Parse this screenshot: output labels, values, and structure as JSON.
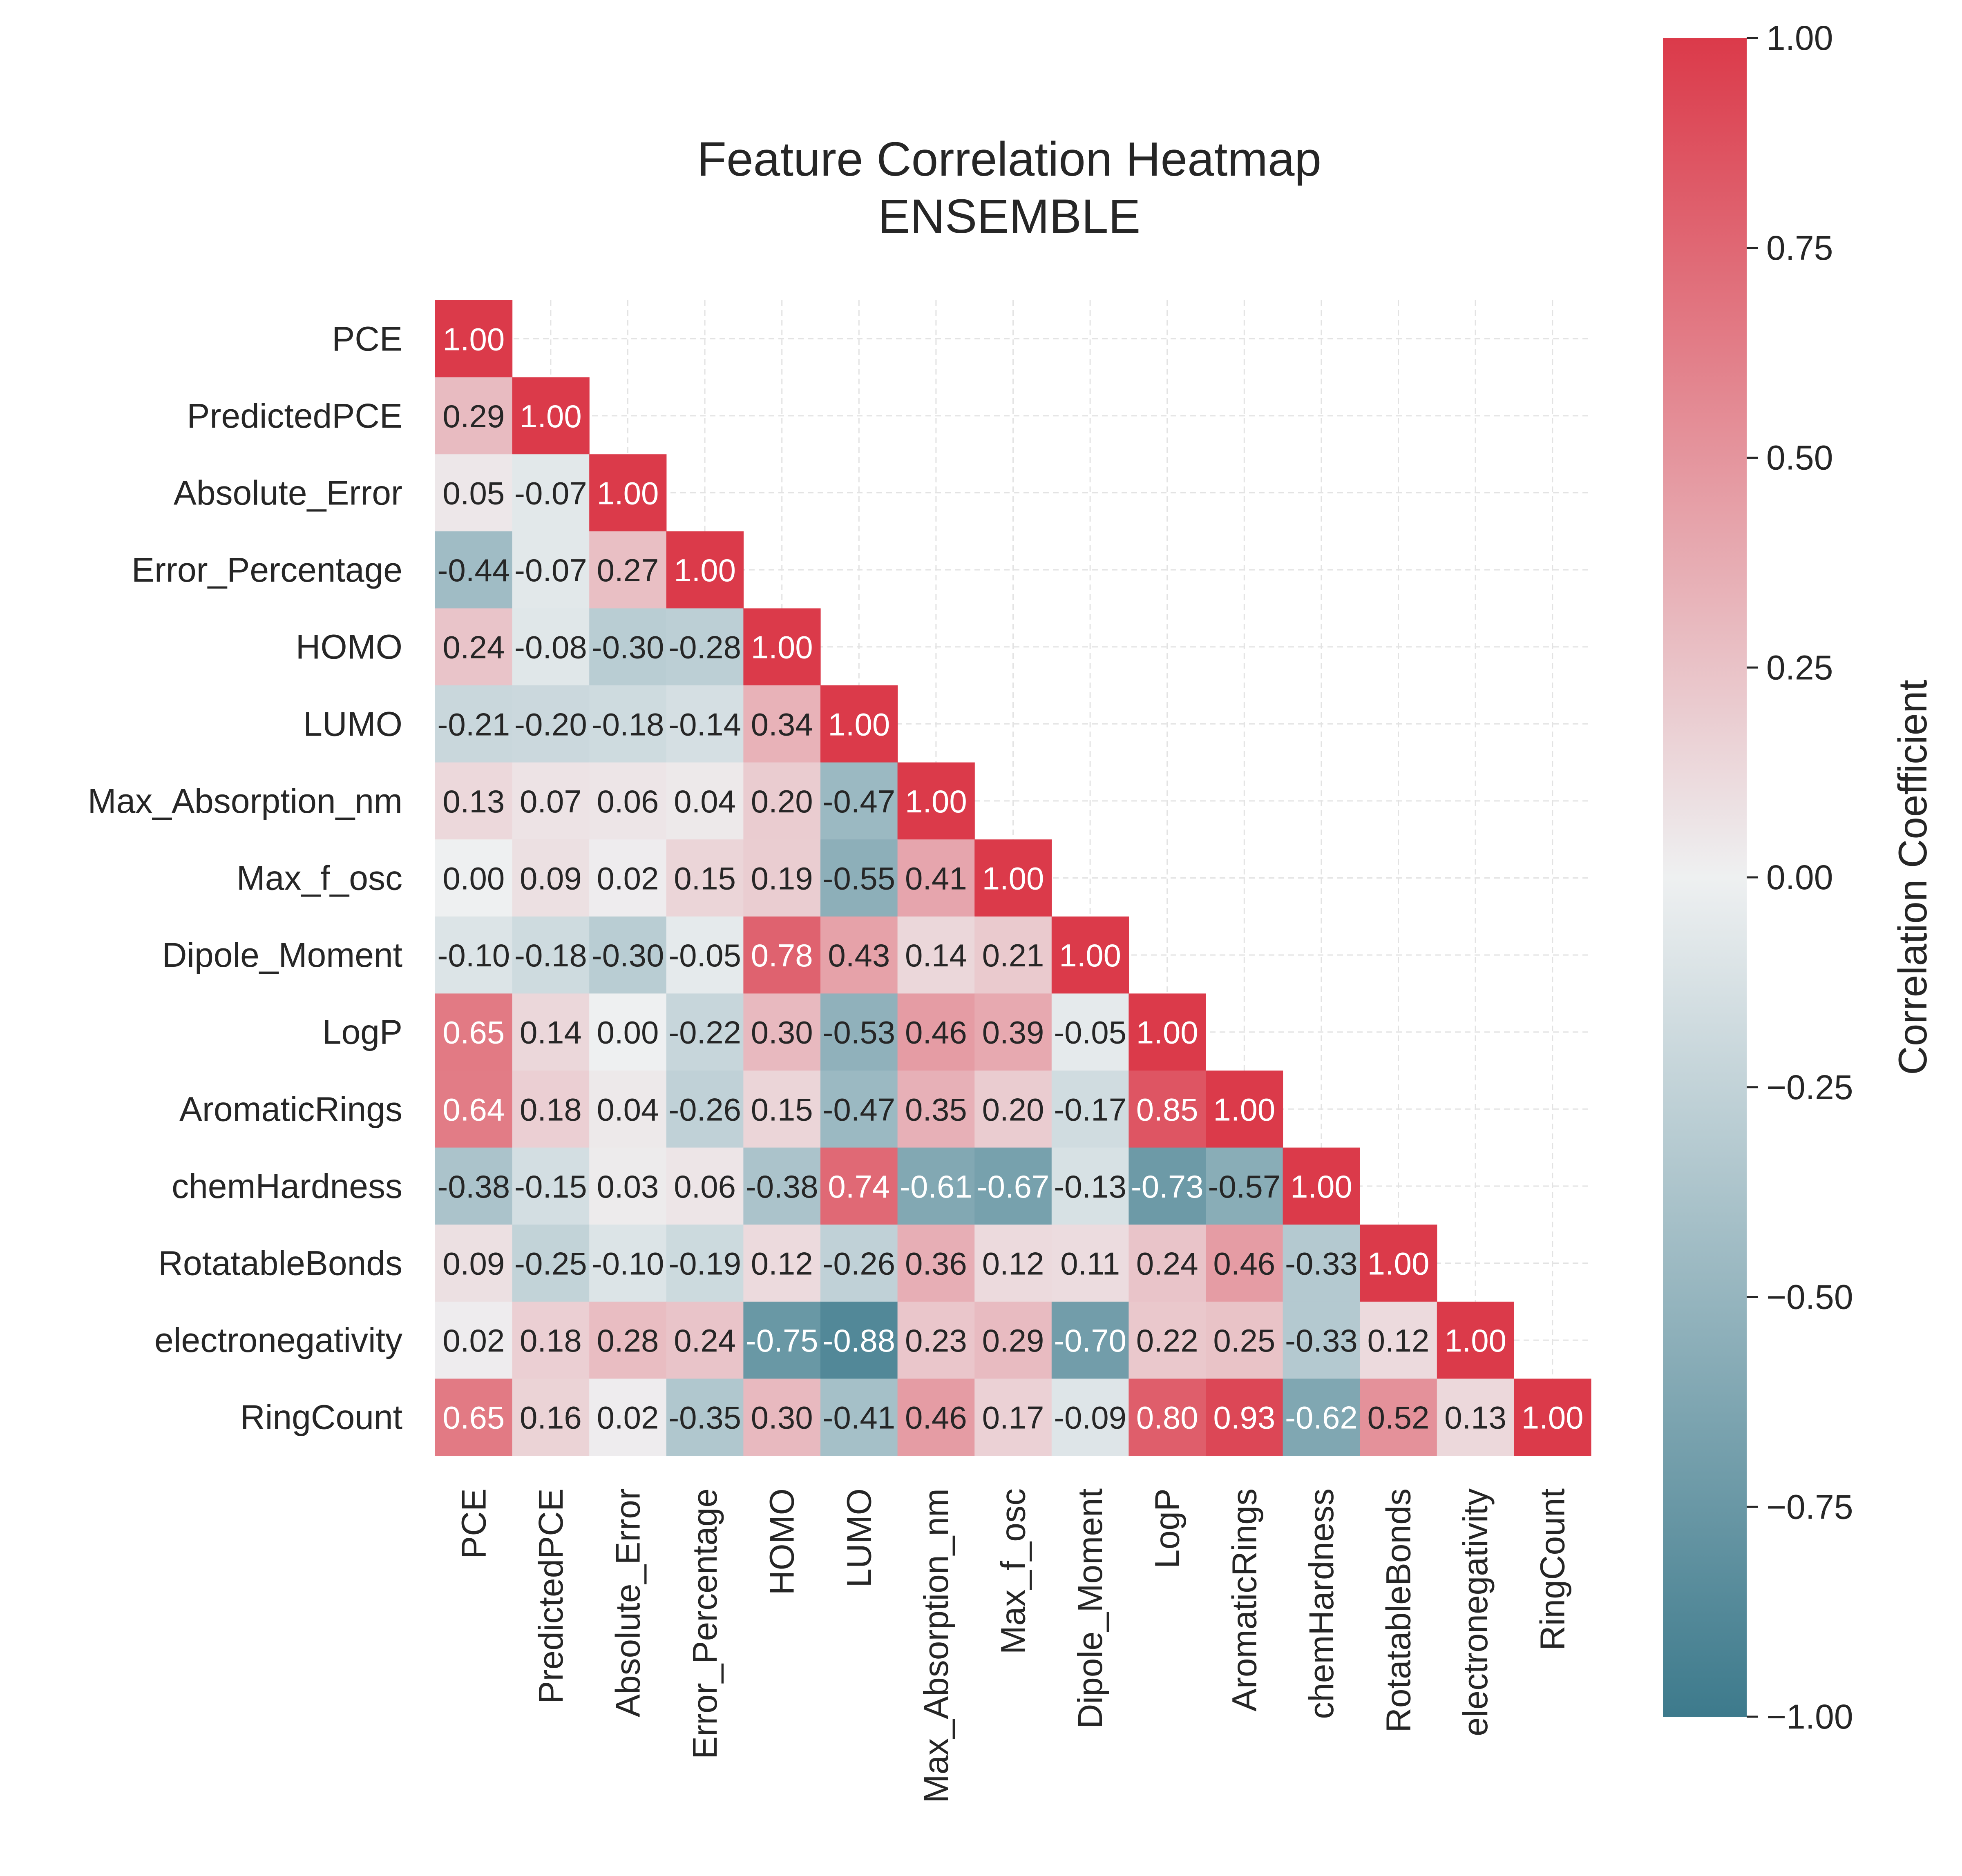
{
  "chart_data": {
    "type": "heatmap",
    "title": "Feature Correlation Heatmap",
    "subtitle": "ENSEMBLE",
    "labels": [
      "PCE",
      "PredictedPCE",
      "Absolute_Error",
      "Error_Percentage",
      "HOMO",
      "LUMO",
      "Max_Absorption_nm",
      "Max_f_osc",
      "Dipole_Moment",
      "LogP",
      "AromaticRings",
      "chemHardness",
      "RotatableBonds",
      "electronegativity",
      "RingCount"
    ],
    "matrix_lower": [
      [
        1.0
      ],
      [
        0.29,
        1.0
      ],
      [
        0.05,
        -0.07,
        1.0
      ],
      [
        -0.44,
        -0.07,
        0.27,
        1.0
      ],
      [
        0.24,
        -0.08,
        -0.3,
        -0.28,
        1.0
      ],
      [
        -0.21,
        -0.2,
        -0.18,
        -0.14,
        0.34,
        1.0
      ],
      [
        0.13,
        0.07,
        0.06,
        0.04,
        0.2,
        -0.47,
        1.0
      ],
      [
        -0.0,
        0.09,
        0.02,
        0.15,
        0.19,
        -0.55,
        0.41,
        1.0
      ],
      [
        -0.1,
        -0.18,
        -0.3,
        -0.05,
        0.78,
        0.43,
        0.14,
        0.21,
        1.0
      ],
      [
        0.65,
        0.14,
        -0.0,
        -0.22,
        0.3,
        -0.53,
        0.46,
        0.39,
        -0.05,
        1.0
      ],
      [
        0.64,
        0.18,
        0.04,
        -0.26,
        0.15,
        -0.47,
        0.35,
        0.2,
        -0.17,
        0.85,
        1.0
      ],
      [
        -0.38,
        -0.15,
        0.03,
        0.06,
        -0.38,
        0.74,
        -0.61,
        -0.67,
        -0.13,
        -0.73,
        -0.57,
        1.0
      ],
      [
        0.09,
        -0.25,
        -0.1,
        -0.19,
        0.12,
        -0.26,
        0.36,
        0.12,
        0.11,
        0.24,
        0.46,
        -0.33,
        1.0
      ],
      [
        0.02,
        0.18,
        0.28,
        0.24,
        -0.75,
        -0.88,
        0.23,
        0.29,
        -0.7,
        0.22,
        0.25,
        -0.33,
        0.12,
        1.0
      ],
      [
        0.65,
        0.16,
        0.02,
        -0.35,
        0.3,
        -0.41,
        0.46,
        0.17,
        -0.09,
        0.8,
        0.93,
        -0.62,
        0.52,
        0.13,
        1.0
      ]
    ],
    "value_format": "2 decimals",
    "colormap": {
      "low": "#3d7a8c",
      "mid": "#eef0f1",
      "high": "#db3a4a"
    },
    "colorbar": {
      "label": "Correlation Coefficient",
      "range": [
        -1,
        1
      ],
      "ticks": [
        "1.00",
        "0.75",
        "0.50",
        "0.25",
        "0.00",
        "−0.25",
        "−0.50",
        "−0.75",
        "−1.00"
      ],
      "tick_values": [
        1.0,
        0.75,
        0.5,
        0.25,
        0.0,
        -0.25,
        -0.5,
        -0.75,
        -1.0
      ]
    },
    "grid": true
  }
}
